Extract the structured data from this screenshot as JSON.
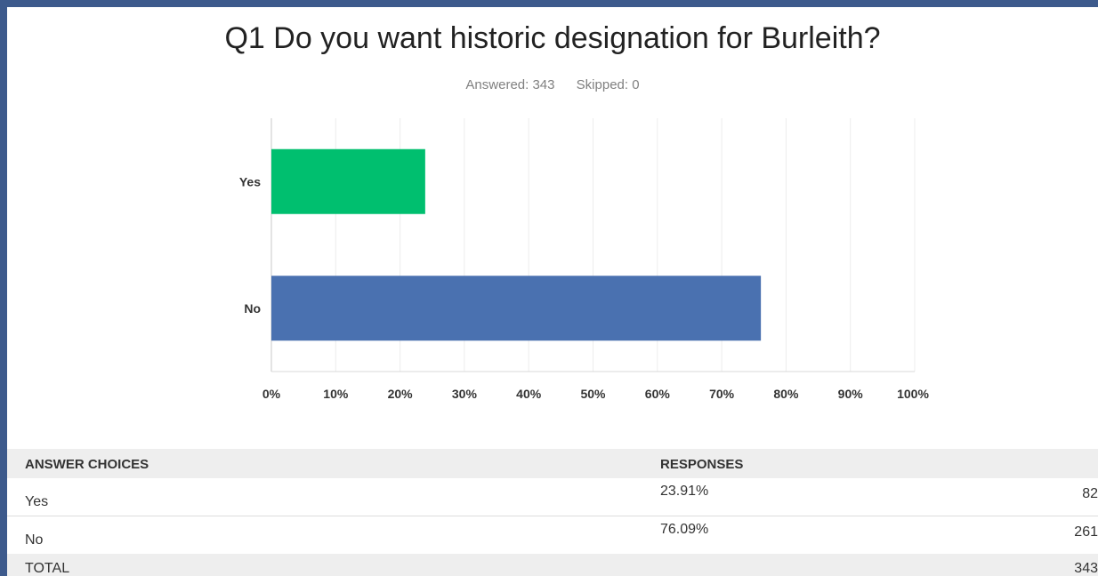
{
  "chart_data": {
    "type": "bar",
    "orientation": "horizontal",
    "title": "Q1 Do you want historic designation for Burleith?",
    "answered": "Answered: 343",
    "skipped": "Skipped: 0",
    "categories": [
      "Yes",
      "No"
    ],
    "values": [
      23.91,
      76.09
    ],
    "colors": [
      "#00bf6f",
      "#4a71b0"
    ],
    "xlim": [
      0,
      100
    ],
    "xticks": [
      "0%",
      "10%",
      "20%",
      "30%",
      "40%",
      "50%",
      "60%",
      "70%",
      "80%",
      "90%",
      "100%"
    ],
    "grid": true
  },
  "table": {
    "headers": [
      "ANSWER CHOICES",
      "RESPONSES"
    ],
    "rows": [
      {
        "choice": "Yes",
        "percent": "23.91%",
        "count": "82"
      },
      {
        "choice": "No",
        "percent": "76.09%",
        "count": "261"
      }
    ],
    "total_label": "TOTAL",
    "total_count": "343"
  }
}
